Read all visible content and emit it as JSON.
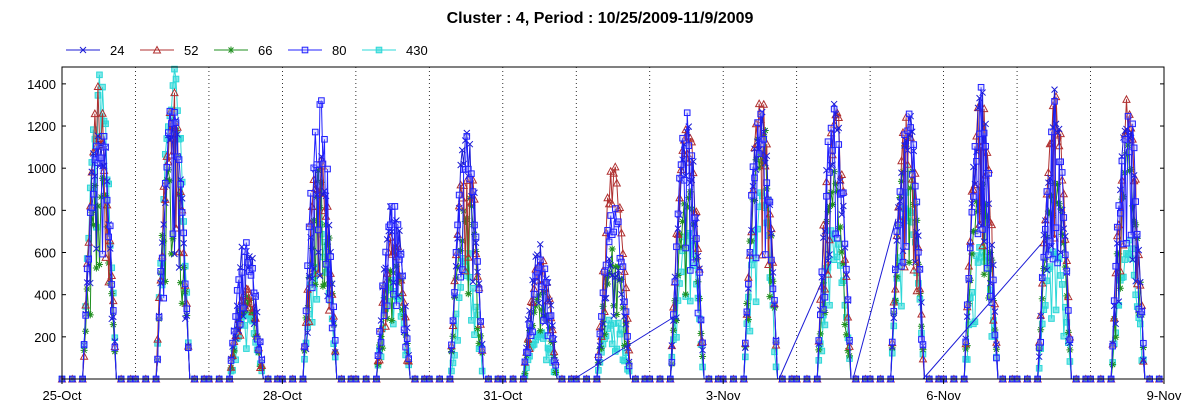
{
  "chart_data": {
    "type": "line",
    "title": "Cluster : 4, Period : 10/25/2009-11/9/2009",
    "xlabel": "",
    "ylabel": "",
    "x_ticks": [
      "25-Oct",
      "28-Oct",
      "31-Oct",
      "3-Nov",
      "6-Nov",
      "9-Nov"
    ],
    "y_ticks": [
      200,
      400,
      600,
      800,
      1000,
      1200,
      1400
    ],
    "ylim": [
      0,
      1480
    ],
    "xlim": [
      "2009-10-25",
      "2009-11-09"
    ],
    "grid": "dotted vertical lines at each day",
    "legend_position": "top-left",
    "series": [
      {
        "name": "24",
        "color": "#1c1cd6",
        "marker": "x-icon",
        "daily_peaks": [
          1260,
          1250,
          660,
          1100,
          830,
          1160,
          650,
          600,
          1200,
          1260,
          1270,
          1270,
          1310,
          1310,
          1270
        ]
      },
      {
        "name": "52",
        "color": "#b03030",
        "marker": "triangle-icon",
        "daily_peaks": [
          1350,
          1330,
          430,
          1080,
          710,
          1080,
          560,
          1020,
          1240,
          1300,
          1300,
          1240,
          1330,
          1340,
          1280
        ]
      },
      {
        "name": "66",
        "color": "#1f8f1f",
        "marker": "asterisk-icon",
        "daily_peaks": [
          1000,
          1200,
          380,
          1000,
          600,
          900,
          410,
          620,
          900,
          1250,
          950,
          1100,
          1000,
          960,
          1080
        ]
      },
      {
        "name": "80",
        "color": "#2020ff",
        "marker": "square-icon",
        "daily_peaks": [
          1280,
          1280,
          620,
          1290,
          800,
          1110,
          550,
          840,
          1210,
          1280,
          1300,
          1280,
          1320,
          1280,
          1290
        ]
      },
      {
        "name": "430",
        "color": "#2ed8d8",
        "marker": "square-icon",
        "daily_peaks": [
          1400,
          1460,
          320,
          700,
          480,
          600,
          220,
          300,
          700,
          900,
          700,
          880,
          700,
          620,
          650
        ]
      }
    ]
  }
}
